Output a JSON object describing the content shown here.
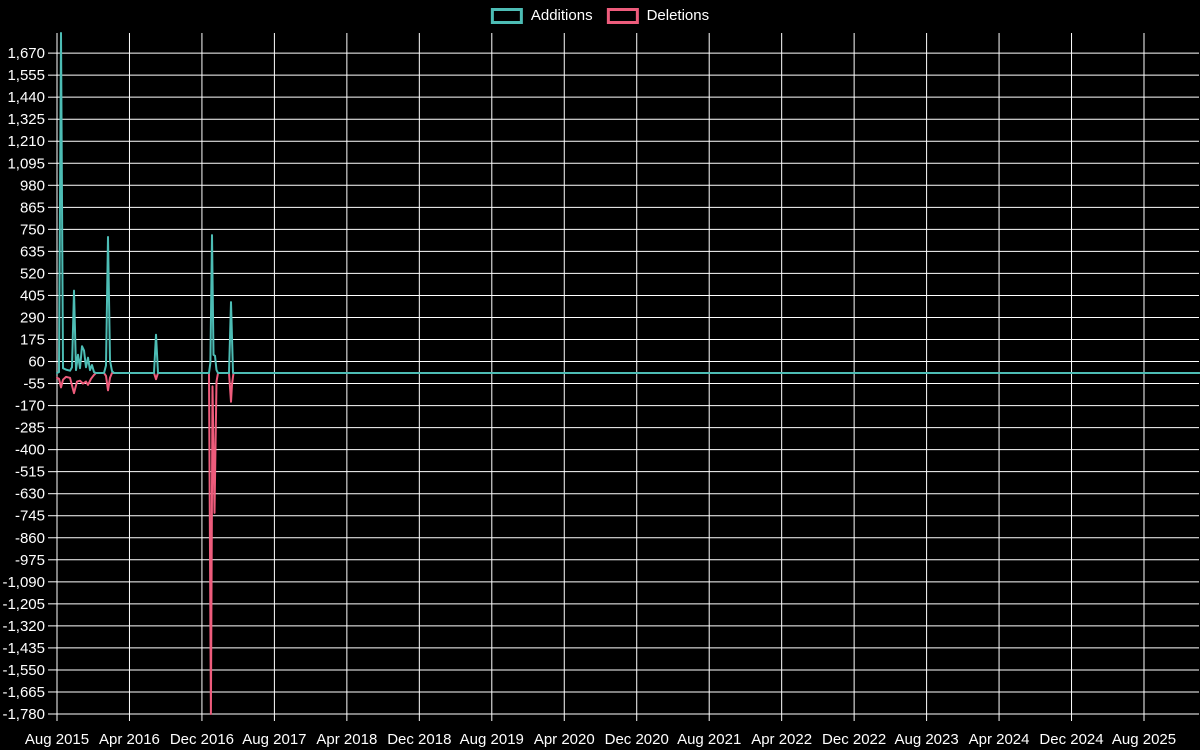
{
  "legend": {
    "items": [
      {
        "label": "Additions",
        "color": "#4DBDB5"
      },
      {
        "label": "Deletions",
        "color": "#EE5C7C"
      }
    ]
  },
  "chart_data": {
    "type": "line",
    "title": "",
    "xlabel": "",
    "ylabel": "",
    "background_color": "#000000",
    "grid_color": "#ffffff",
    "text_color": "#ffffff",
    "grid": true,
    "legend_position": "top-center",
    "x_unit": "months since Aug 2015",
    "x_range_months": [
      0,
      126.1
    ],
    "y_range": [
      -1780,
      1775
    ],
    "y_tick_step": 115,
    "y_ticks": [
      1670,
      1555,
      1440,
      1325,
      1210,
      1095,
      980,
      865,
      750,
      635,
      520,
      405,
      290,
      175,
      60,
      -55,
      -170,
      -285,
      -400,
      -515,
      -630,
      -745,
      -860,
      -975,
      -1090,
      -1205,
      -1320,
      -1435,
      -1550,
      -1665,
      -1780
    ],
    "x_tick_months": [
      0,
      8,
      16,
      24,
      32,
      40,
      48,
      56,
      64,
      72,
      80,
      88,
      96,
      104,
      112,
      120
    ],
    "x_tick_labels": [
      "Aug 2015",
      "Apr 2016",
      "Dec 2016",
      "Aug 2017",
      "Apr 2018",
      "Dec 2018",
      "Aug 2019",
      "Apr 2020",
      "Dec 2020",
      "Aug 2021",
      "Apr 2022",
      "Dec 2022",
      "Aug 2023",
      "Apr 2024",
      "Dec 2024",
      "Aug 2025"
    ],
    "series": [
      {
        "name": "Deletions",
        "color": "#EE5C7C",
        "points": [
          [
            0,
            -25
          ],
          [
            0.22,
            -30
          ],
          [
            0.44,
            -75
          ],
          [
            0.66,
            -35
          ],
          [
            0.99,
            -20
          ],
          [
            1.44,
            -25
          ],
          [
            1.88,
            -105
          ],
          [
            2.21,
            -45
          ],
          [
            2.54,
            -40
          ],
          [
            2.87,
            -55
          ],
          [
            3.2,
            -45
          ],
          [
            3.42,
            -62
          ],
          [
            3.75,
            -30
          ],
          [
            4.08,
            -10
          ],
          [
            4.31,
            0
          ],
          [
            5.19,
            0
          ],
          [
            5.41,
            -15
          ],
          [
            5.63,
            -90
          ],
          [
            5.85,
            -25
          ],
          [
            6.07,
            0
          ],
          [
            10.71,
            0
          ],
          [
            10.93,
            -32
          ],
          [
            11.15,
            0
          ],
          [
            16.78,
            0
          ],
          [
            16.99,
            -1780
          ],
          [
            17.17,
            -70
          ],
          [
            17.39,
            -730
          ],
          [
            17.61,
            -45
          ],
          [
            17.77,
            0
          ],
          [
            18.99,
            0
          ],
          [
            19.21,
            -150
          ],
          [
            19.32,
            -60
          ],
          [
            19.48,
            0
          ],
          [
            126.1,
            0
          ]
        ]
      },
      {
        "name": "Additions",
        "color": "#4DBDB5",
        "points": [
          [
            0,
            0
          ],
          [
            0.22,
            5
          ],
          [
            0.44,
            1775
          ],
          [
            0.66,
            25
          ],
          [
            0.99,
            18
          ],
          [
            1.44,
            12
          ],
          [
            1.66,
            30
          ],
          [
            1.88,
            430
          ],
          [
            2.1,
            15
          ],
          [
            2.32,
            95
          ],
          [
            2.54,
            25
          ],
          [
            2.76,
            140
          ],
          [
            2.98,
            118
          ],
          [
            3.2,
            30
          ],
          [
            3.42,
            80
          ],
          [
            3.64,
            15
          ],
          [
            3.86,
            42
          ],
          [
            4.08,
            5
          ],
          [
            4.31,
            0
          ],
          [
            5.19,
            0
          ],
          [
            5.41,
            40
          ],
          [
            5.63,
            710
          ],
          [
            5.85,
            65
          ],
          [
            6.07,
            10
          ],
          [
            6.29,
            0
          ],
          [
            10.71,
            0
          ],
          [
            10.93,
            200
          ],
          [
            11.15,
            0
          ],
          [
            16.78,
            0
          ],
          [
            16.94,
            55
          ],
          [
            17.11,
            720
          ],
          [
            17.28,
            95
          ],
          [
            17.44,
            90
          ],
          [
            17.61,
            15
          ],
          [
            17.77,
            0
          ],
          [
            18.99,
            0
          ],
          [
            19.21,
            370
          ],
          [
            19.43,
            0
          ],
          [
            126.1,
            0
          ]
        ]
      }
    ]
  }
}
